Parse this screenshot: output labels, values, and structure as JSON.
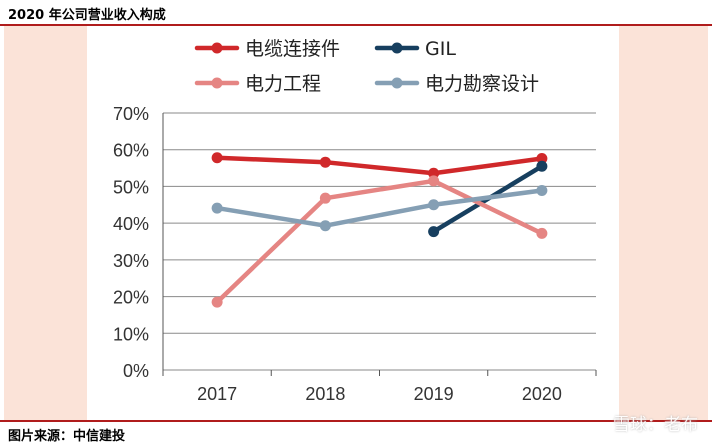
{
  "header": {
    "title": "2020 年公司营业收入构成"
  },
  "footer": {
    "source": "图片来源：中信建投"
  },
  "watermark": {
    "text": "雪球：老布"
  },
  "chart_data": {
    "type": "line",
    "title": "",
    "xlabel": "",
    "ylabel": "",
    "categories": [
      "2017",
      "2018",
      "2019",
      "2020"
    ],
    "ylim": [
      0,
      70
    ],
    "yticks": [
      0,
      10,
      20,
      30,
      40,
      50,
      60,
      70
    ],
    "ytick_labels": [
      "0%",
      "10%",
      "20%",
      "30%",
      "40%",
      "50%",
      "60%",
      "70%"
    ],
    "grid": true,
    "legend_position": "top",
    "series": [
      {
        "name": "电缆连接件",
        "color": "#d0282a",
        "values": [
          57.8,
          56.6,
          53.6,
          57.6
        ]
      },
      {
        "name": "GIL",
        "color": "#173f5f",
        "values": [
          null,
          null,
          37.7,
          55.5
        ]
      },
      {
        "name": "电力工程",
        "color": "#e58583",
        "values": [
          18.5,
          46.8,
          51.5,
          37.2
        ]
      },
      {
        "name": "电力勘察设计",
        "color": "#859fb4",
        "values": [
          44.1,
          39.3,
          45.0,
          48.9
        ]
      }
    ]
  }
}
